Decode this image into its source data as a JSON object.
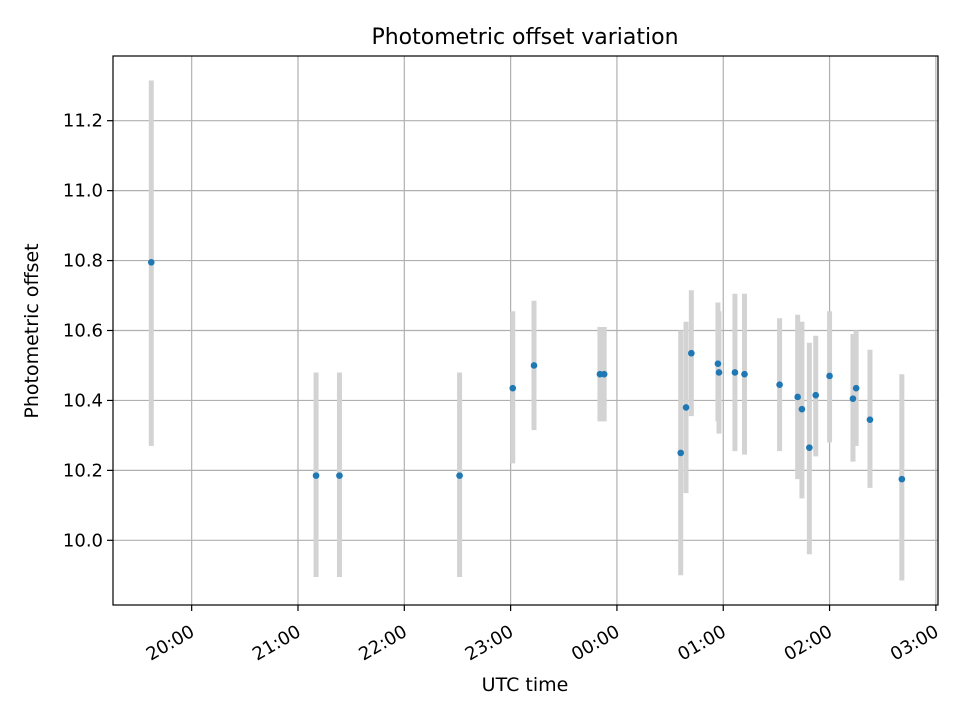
{
  "chart_data": {
    "type": "scatter",
    "title": "Photometric offset variation",
    "xlabel": "UTC time",
    "ylabel": "Photometric offset",
    "x_ticks": [
      "20:00",
      "21:00",
      "22:00",
      "23:00",
      "00:00",
      "01:00",
      "02:00",
      "03:00"
    ],
    "x_tick_hours": [
      20,
      21,
      22,
      23,
      24,
      25,
      26,
      27
    ],
    "y_ticks": [
      "10.0",
      "10.2",
      "10.4",
      "10.6",
      "10.8",
      "11.0",
      "11.2"
    ],
    "y_tick_values": [
      10.0,
      10.2,
      10.4,
      10.6,
      10.8,
      11.0,
      11.2
    ],
    "xlim_hours": [
      19.26,
      27.02
    ],
    "ylim": [
      9.815,
      11.385
    ],
    "grid": true,
    "colors": {
      "marker": "#1f77b4",
      "errorbar": "#d3d3d3",
      "grid": "#b0b0b0"
    },
    "points": [
      {
        "t": 19.62,
        "y": 10.795,
        "lo": 10.27,
        "hi": 11.315
      },
      {
        "t": 21.17,
        "y": 10.185,
        "lo": 9.895,
        "hi": 10.48
      },
      {
        "t": 21.39,
        "y": 10.185,
        "lo": 9.895,
        "hi": 10.48
      },
      {
        "t": 22.52,
        "y": 10.185,
        "lo": 9.895,
        "hi": 10.48
      },
      {
        "t": 23.02,
        "y": 10.435,
        "lo": 10.22,
        "hi": 10.655
      },
      {
        "t": 23.22,
        "y": 10.5,
        "lo": 10.315,
        "hi": 10.685
      },
      {
        "t": 23.84,
        "y": 10.475,
        "lo": 10.34,
        "hi": 10.61
      },
      {
        "t": 23.88,
        "y": 10.475,
        "lo": 10.34,
        "hi": 10.61
      },
      {
        "t": 24.6,
        "y": 10.25,
        "lo": 9.9,
        "hi": 10.6
      },
      {
        "t": 24.65,
        "y": 10.38,
        "lo": 10.135,
        "hi": 10.625
      },
      {
        "t": 24.7,
        "y": 10.535,
        "lo": 10.355,
        "hi": 10.715
      },
      {
        "t": 24.95,
        "y": 10.505,
        "lo": 10.34,
        "hi": 10.68
      },
      {
        "t": 24.96,
        "y": 10.48,
        "lo": 10.305,
        "hi": 10.655
      },
      {
        "t": 25.11,
        "y": 10.48,
        "lo": 10.255,
        "hi": 10.705
      },
      {
        "t": 25.2,
        "y": 10.475,
        "lo": 10.245,
        "hi": 10.705
      },
      {
        "t": 25.53,
        "y": 10.445,
        "lo": 10.255,
        "hi": 10.635
      },
      {
        "t": 25.7,
        "y": 10.41,
        "lo": 10.175,
        "hi": 10.645
      },
      {
        "t": 25.74,
        "y": 10.375,
        "lo": 10.12,
        "hi": 10.625
      },
      {
        "t": 25.81,
        "y": 10.265,
        "lo": 9.96,
        "hi": 10.565
      },
      {
        "t": 25.87,
        "y": 10.415,
        "lo": 10.24,
        "hi": 10.585
      },
      {
        "t": 26.0,
        "y": 10.47,
        "lo": 10.28,
        "hi": 10.655
      },
      {
        "t": 26.22,
        "y": 10.405,
        "lo": 10.225,
        "hi": 10.59
      },
      {
        "t": 26.25,
        "y": 10.435,
        "lo": 10.27,
        "hi": 10.6
      },
      {
        "t": 26.38,
        "y": 10.345,
        "lo": 10.15,
        "hi": 10.545
      },
      {
        "t": 26.68,
        "y": 10.175,
        "lo": 9.885,
        "hi": 10.475
      }
    ]
  }
}
